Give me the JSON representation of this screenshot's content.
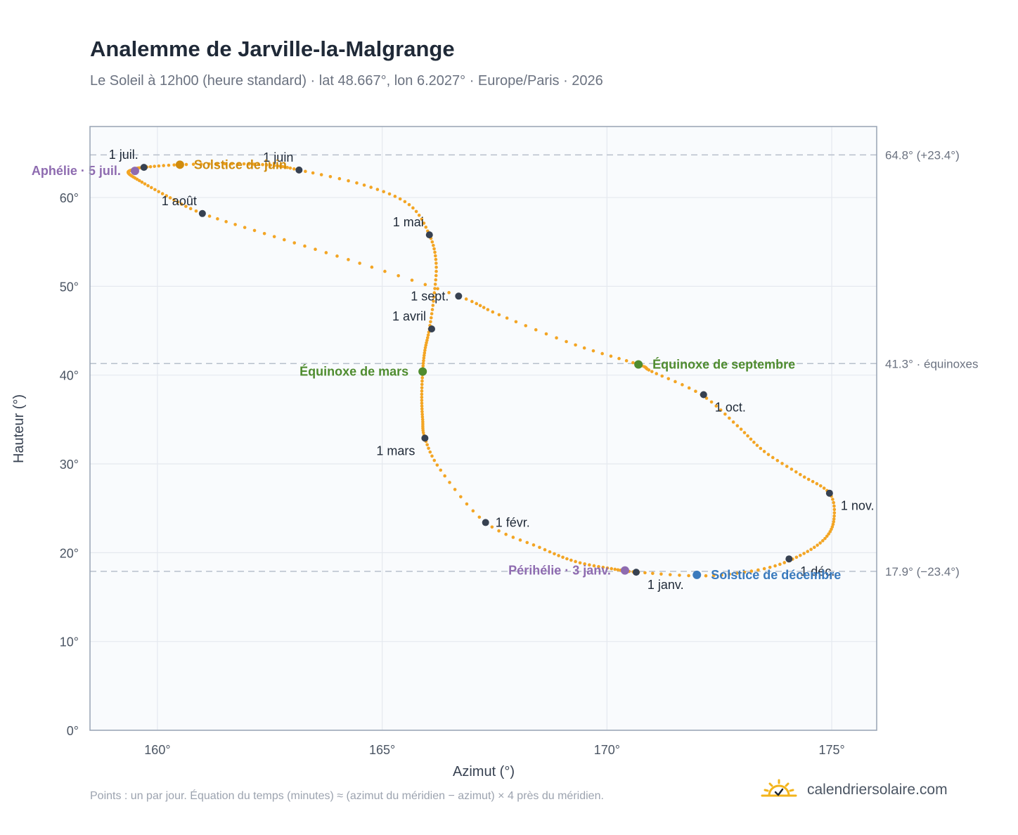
{
  "header": {
    "title": "Analemme de Jarville-la-Malgrange",
    "subtitle": "Le Soleil à 12h00 (heure standard) · lat 48.667°, lon 6.2027° · Europe/Paris · 2026"
  },
  "footer": {
    "note": "Points : un par jour. Équation du temps (minutes) ≈ (azimut du méridien − azimut) × 4 près du méridien.",
    "brand": "calendriersolaire.com",
    "brand_icon": "sun-check-icon"
  },
  "colors": {
    "curve": "#f3a524",
    "month_marker": "#374151",
    "solstice_june": "#d08c0e",
    "solstice_december": "#3a7abd",
    "equinox": "#4f8c2f",
    "apsis": "#8e6bb0",
    "reference_line": "#b8c0cc",
    "grid": "#e5e9ef",
    "plot_bg": "#f9fbfd",
    "frame": "#97a3b4"
  },
  "chart_data": {
    "type": "scatter",
    "xlabel": "Azimut (°)",
    "ylabel": "Hauteur (°)",
    "xlim": [
      158.5,
      176
    ],
    "ylim": [
      0,
      68
    ],
    "x_ticks": [
      160,
      165,
      170,
      175
    ],
    "x_tick_labels": [
      "160°",
      "165°",
      "170°",
      "175°"
    ],
    "y_ticks": [
      0,
      10,
      20,
      30,
      40,
      50,
      60
    ],
    "y_tick_labels": [
      "0°",
      "10°",
      "20°",
      "30°",
      "40°",
      "50°",
      "60°"
    ],
    "grid": true,
    "curve_anchors": [
      [
        170.7,
        17.8
      ],
      [
        172.2,
        17.4
      ],
      [
        173.5,
        18.2
      ],
      [
        174.3,
        19.7
      ],
      [
        174.85,
        21.6
      ],
      [
        175.05,
        23.8
      ],
      [
        174.95,
        26.7
      ],
      [
        174.3,
        28.8
      ],
      [
        173.5,
        31.4
      ],
      [
        172.9,
        34.3
      ],
      [
        172.1,
        37.8
      ],
      [
        171.0,
        40.4
      ],
      [
        170.7,
        41.2
      ],
      [
        169.3,
        43.4
      ],
      [
        167.6,
        46.8
      ],
      [
        166.7,
        48.9
      ],
      [
        164.5,
        52.6
      ],
      [
        162.6,
        55.6
      ],
      [
        161.0,
        58.2
      ],
      [
        160.2,
        60.2
      ],
      [
        159.6,
        61.9
      ],
      [
        159.35,
        62.8
      ],
      [
        159.5,
        63.2
      ],
      [
        159.7,
        63.4
      ],
      [
        160.5,
        63.7
      ],
      [
        161.8,
        63.8
      ],
      [
        162.6,
        63.6
      ],
      [
        163.15,
        63.1
      ],
      [
        164.6,
        61.4
      ],
      [
        165.6,
        59.2
      ],
      [
        166.05,
        55.8
      ],
      [
        166.2,
        52.6
      ],
      [
        166.15,
        48.8
      ],
      [
        166.05,
        45.2
      ],
      [
        165.95,
        42.8
      ],
      [
        165.9,
        40.4
      ],
      [
        165.88,
        37.5
      ],
      [
        165.9,
        35.0
      ],
      [
        165.95,
        32.9
      ],
      [
        166.3,
        29.3
      ],
      [
        167.3,
        23.4
      ],
      [
        168.5,
        20.6
      ],
      [
        169.3,
        19.0
      ],
      [
        170.1,
        18.2
      ],
      [
        170.7,
        17.8
      ]
    ],
    "month_markers": [
      {
        "label": "1 janv.",
        "x": 170.65,
        "y": 17.8,
        "pos": "below-right"
      },
      {
        "label": "1 févr.",
        "x": 167.3,
        "y": 23.4,
        "pos": "right"
      },
      {
        "label": "1 mars",
        "x": 165.95,
        "y": 32.9,
        "pos": "below-left"
      },
      {
        "label": "1 avril",
        "x": 166.1,
        "y": 45.2,
        "pos": "above-left"
      },
      {
        "label": "1 mai",
        "x": 166.05,
        "y": 55.8,
        "pos": "above-left"
      },
      {
        "label": "1 juin",
        "x": 163.15,
        "y": 63.1,
        "pos": "above-left"
      },
      {
        "label": "1 juil.",
        "x": 159.7,
        "y": 63.4,
        "pos": "above-left"
      },
      {
        "label": "1 août",
        "x": 161.0,
        "y": 58.2,
        "pos": "above-left"
      },
      {
        "label": "1 sept.",
        "x": 166.7,
        "y": 48.9,
        "pos": "left"
      },
      {
        "label": "1 oct.",
        "x": 172.15,
        "y": 37.8,
        "pos": "below-right"
      },
      {
        "label": "1 nov.",
        "x": 174.95,
        "y": 26.7,
        "pos": "below-right"
      },
      {
        "label": "1 déc.",
        "x": 174.05,
        "y": 19.3,
        "pos": "below-right"
      }
    ],
    "events": [
      {
        "label": "Solstice de juin",
        "x": 160.5,
        "y": 63.7,
        "color": "#d08c0e",
        "pos": "right"
      },
      {
        "label": "Aphélie · 5 juil.",
        "x": 159.5,
        "y": 63.0,
        "color": "#8e6bb0",
        "pos": "left"
      },
      {
        "label": "Équinoxe de mars",
        "x": 165.9,
        "y": 40.4,
        "color": "#4f8c2f",
        "pos": "left"
      },
      {
        "label": "Équinoxe de septembre",
        "x": 170.7,
        "y": 41.2,
        "color": "#4f8c2f",
        "pos": "right"
      },
      {
        "label": "Périhélie · 3 janv.",
        "x": 170.4,
        "y": 18.0,
        "color": "#8e6bb0",
        "pos": "left"
      },
      {
        "label": "Solstice de décembre",
        "x": 172.0,
        "y": 17.5,
        "color": "#3a7abd",
        "pos": "right"
      }
    ],
    "reference_lines": [
      {
        "y": 64.8,
        "label": "64.8° (+23.4°)"
      },
      {
        "y": 41.3,
        "label": "41.3° · équinoxes"
      },
      {
        "y": 17.9,
        "label": "17.9° (−23.4°)"
      }
    ]
  }
}
